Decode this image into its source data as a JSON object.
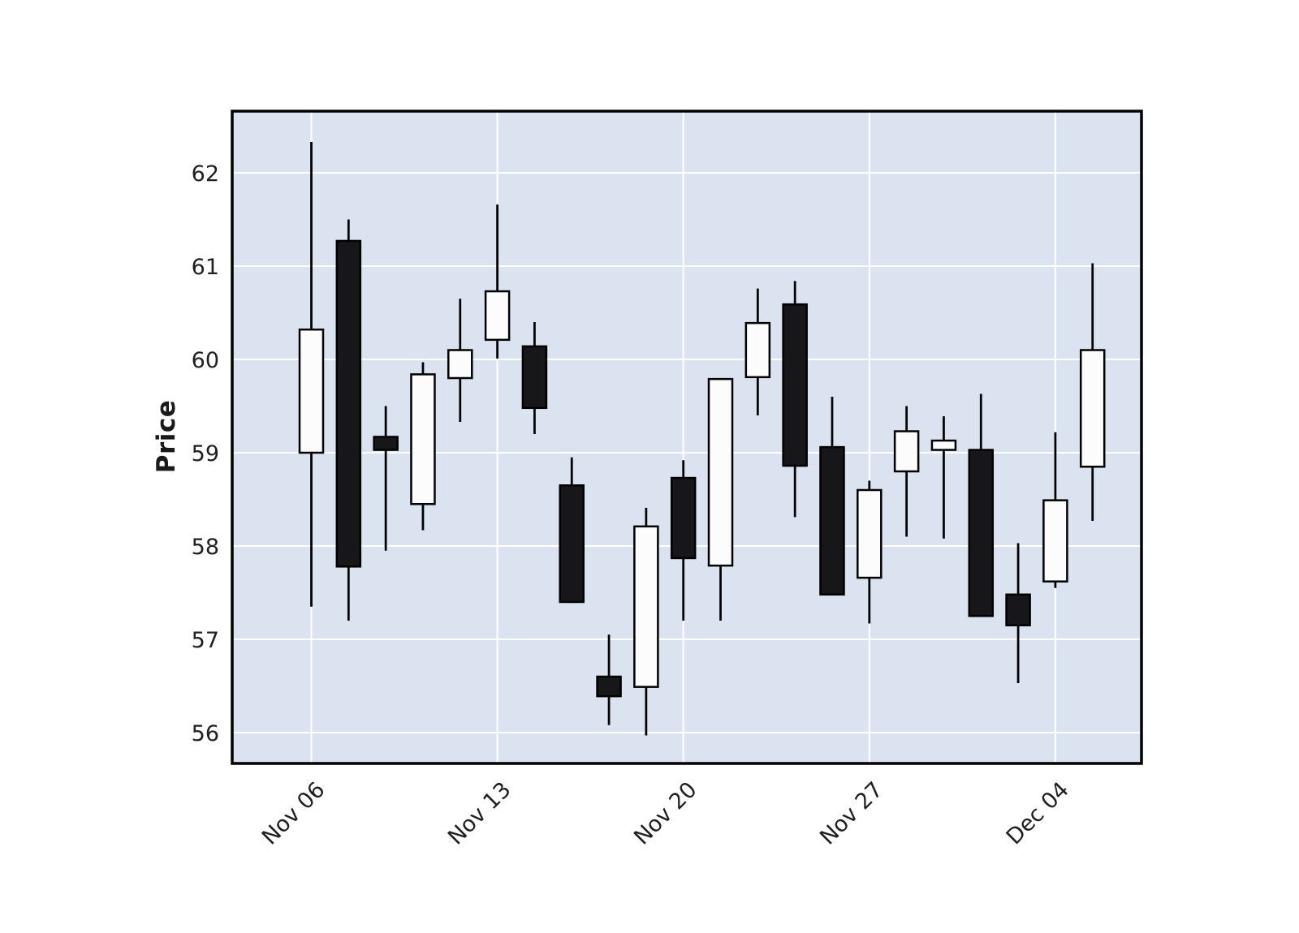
{
  "chart_data": {
    "type": "candlestick",
    "title": "",
    "xlabel": "",
    "ylabel": "Price",
    "grid": true,
    "legend": "none",
    "y_ticks": [
      56,
      57,
      58,
      59,
      60,
      61,
      62
    ],
    "ylim": [
      55.65,
      62.65
    ],
    "x_tick_labels": [
      "Nov 06",
      "Nov 13",
      "Nov 20",
      "Nov 27",
      "Dec 04"
    ],
    "x_tick_indices": [
      0,
      5,
      10,
      15,
      20
    ],
    "colors": {
      "plot_bg": "#dce3f0",
      "grid": "#ffffff",
      "up_fill": "#fcfcfd",
      "down_fill": "#17171a",
      "edge": "#000000",
      "tick_label": "#1f1f1f"
    },
    "candles": [
      {
        "open": 59.0,
        "high": 62.33,
        "low": 57.35,
        "close": 60.32
      },
      {
        "open": 61.27,
        "high": 61.5,
        "low": 57.2,
        "close": 57.78
      },
      {
        "open": 59.17,
        "high": 59.5,
        "low": 57.95,
        "close": 59.03
      },
      {
        "open": 58.45,
        "high": 59.97,
        "low": 58.17,
        "close": 59.84
      },
      {
        "open": 59.8,
        "high": 60.65,
        "low": 59.33,
        "close": 60.1
      },
      {
        "open": 60.21,
        "high": 61.66,
        "low": 60.01,
        "close": 60.73
      },
      {
        "open": 60.14,
        "high": 60.4,
        "low": 59.2,
        "close": 59.48
      },
      {
        "open": 58.65,
        "high": 58.95,
        "low": 57.4,
        "close": 57.4
      },
      {
        "open": 56.6,
        "high": 57.05,
        "low": 56.08,
        "close": 56.39
      },
      {
        "open": 56.49,
        "high": 58.41,
        "low": 55.97,
        "close": 58.21
      },
      {
        "open": 58.73,
        "high": 58.92,
        "low": 57.2,
        "close": 57.87
      },
      {
        "open": 57.79,
        "high": 59.79,
        "low": 57.2,
        "close": 59.79
      },
      {
        "open": 59.81,
        "high": 60.76,
        "low": 59.4,
        "close": 60.39
      },
      {
        "open": 60.59,
        "high": 60.84,
        "low": 58.31,
        "close": 58.86
      },
      {
        "open": 59.06,
        "high": 59.6,
        "low": 57.48,
        "close": 57.48
      },
      {
        "open": 57.66,
        "high": 58.7,
        "low": 57.17,
        "close": 58.6
      },
      {
        "open": 58.8,
        "high": 59.5,
        "low": 58.1,
        "close": 59.23
      },
      {
        "open": 59.03,
        "high": 59.39,
        "low": 58.08,
        "close": 59.13
      },
      {
        "open": 59.03,
        "high": 59.63,
        "low": 57.25,
        "close": 57.25
      },
      {
        "open": 57.48,
        "high": 58.03,
        "low": 56.53,
        "close": 57.15
      },
      {
        "open": 57.62,
        "high": 59.22,
        "low": 57.55,
        "close": 58.49
      },
      {
        "open": 58.85,
        "high": 61.03,
        "low": 58.27,
        "close": 60.1
      }
    ]
  }
}
